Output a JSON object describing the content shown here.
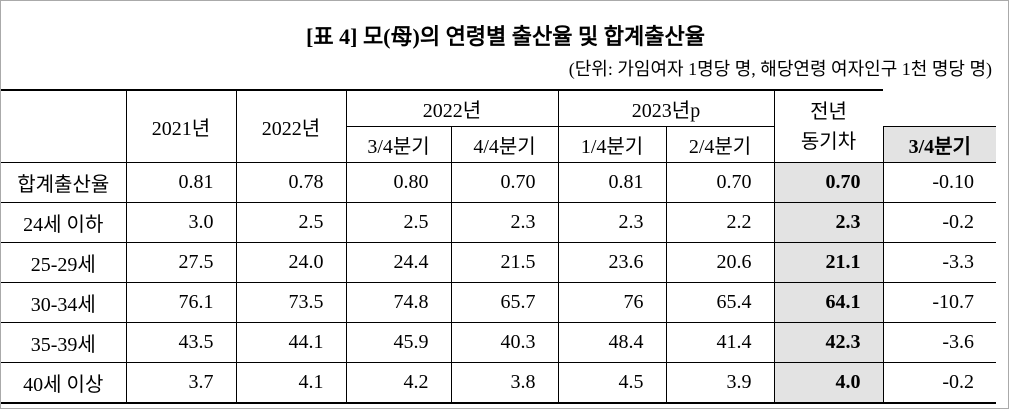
{
  "title": "[표 4] 모(母)의 연령별 출산율 및 합계출산율",
  "unit": "(단위: 가임여자 1명당 명, 해당연령 여자인구 1천 명당 명)",
  "table": {
    "header_top": [
      "2021년",
      "2022년",
      "2022년",
      "2023년p",
      "전년\n동기차"
    ],
    "header_sub": [
      "3/4분기",
      "4/4분기",
      "1/4분기",
      "2/4분기",
      "3/4분기"
    ],
    "rows": [
      [
        "합계출산율",
        "0.81",
        "0.78",
        "0.80",
        "0.70",
        "0.81",
        "0.70",
        "0.70",
        "-0.10"
      ],
      [
        "24세 이하",
        "3.0",
        "2.5",
        "2.5",
        "2.3",
        "2.3",
        "2.2",
        "2.3",
        "-0.2"
      ],
      [
        "25-29세",
        "27.5",
        "24.0",
        "24.4",
        "21.5",
        "23.6",
        "20.6",
        "21.1",
        "-3.3"
      ],
      [
        "30-34세",
        "76.1",
        "73.5",
        "74.8",
        "65.7",
        "76",
        "65.4",
        "64.1",
        "-10.7"
      ],
      [
        "35-39세",
        "43.5",
        "44.1",
        "45.9",
        "40.3",
        "48.4",
        "41.4",
        "42.3",
        "-3.6"
      ],
      [
        "40세 이상",
        "3.7",
        "4.1",
        "4.2",
        "3.8",
        "4.5",
        "3.9",
        "4.0",
        "-0.2"
      ]
    ]
  }
}
